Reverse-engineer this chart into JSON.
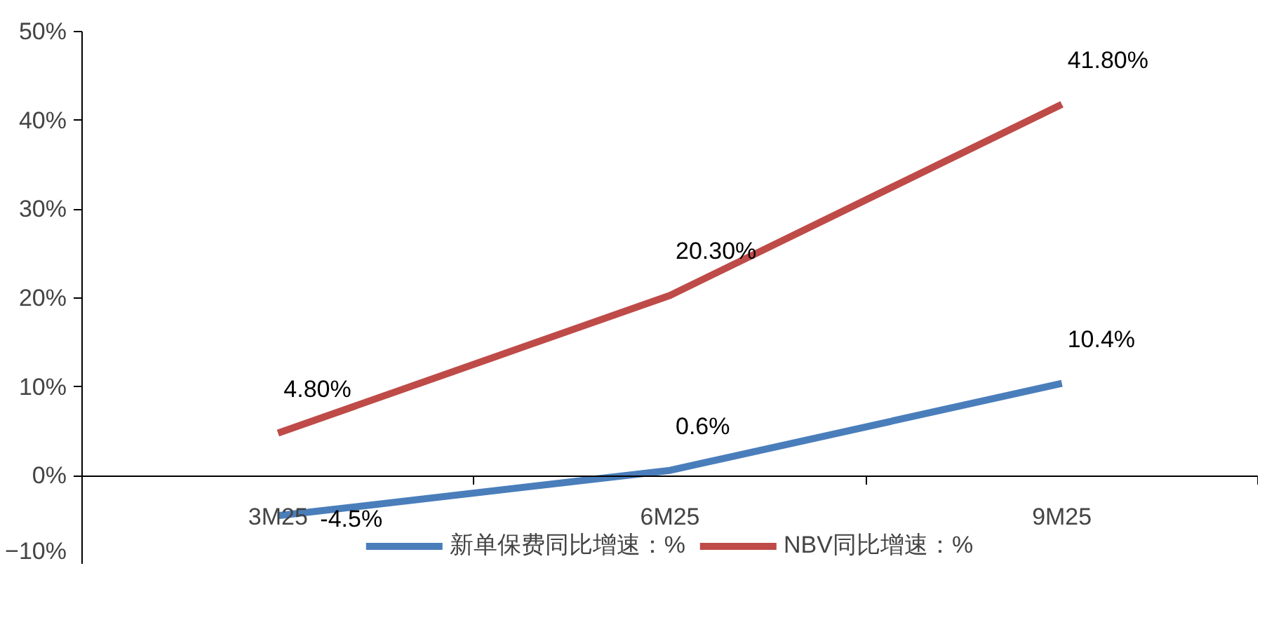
{
  "chart_data": {
    "type": "line",
    "categories": [
      "3M25",
      "6M25",
      "9M25"
    ],
    "series": [
      {
        "name": "新单保费同比增速：%",
        "color": "#4a7ebb",
        "values": [
          -4.5,
          0.6,
          10.4
        ],
        "value_labels": [
          "-4.5%",
          "0.6%",
          "10.4%"
        ]
      },
      {
        "name": "NBV同比增速：%",
        "color": "#be4b48",
        "values": [
          4.8,
          20.3,
          41.8
        ],
        "value_labels": [
          "4.80%",
          "20.30%",
          "41.80%"
        ]
      }
    ],
    "ylim": [
      -10,
      50
    ],
    "yticks": [
      {
        "value": -10,
        "label": "−10%"
      },
      {
        "value": 0,
        "label": "0%"
      },
      {
        "value": 10,
        "label": "10%"
      },
      {
        "value": 20,
        "label": "20%"
      },
      {
        "value": 30,
        "label": "30%"
      },
      {
        "value": 40,
        "label": "40%"
      },
      {
        "value": 50,
        "label": "50%"
      }
    ],
    "grid": false,
    "legend": "bottom",
    "marker": "none",
    "line_style": "solid"
  }
}
